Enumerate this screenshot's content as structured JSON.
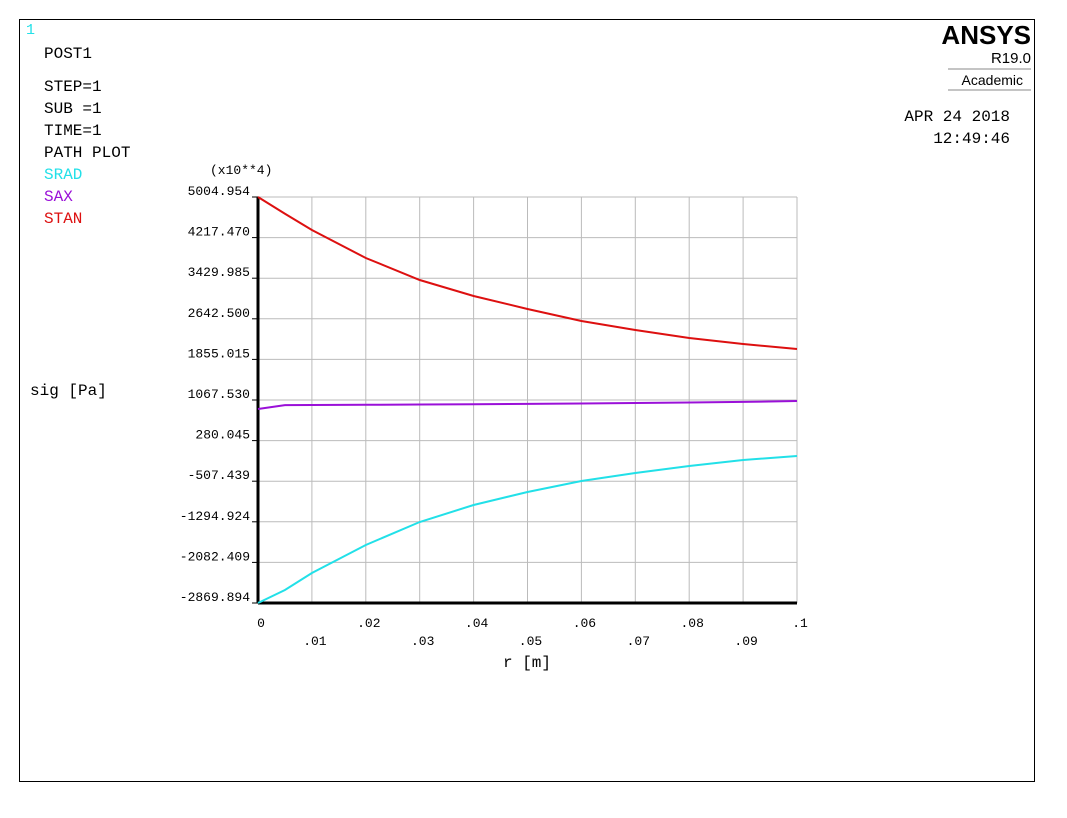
{
  "window_number": "1",
  "info": [
    "POST1",
    "STEP=1",
    "SUB =1",
    "TIME=1",
    "PATH PLOT"
  ],
  "logo": {
    "name": "ANSYS",
    "release": "R19.0",
    "license": "Academic"
  },
  "date": "APR 24 2018",
  "time": "12:49:46",
  "chart_data": {
    "type": "line",
    "y_multiplier": "(x10**4)",
    "x_label": "r [m]",
    "y_label": "sig [Pa]",
    "x": [
      0,
      0.005,
      0.01,
      0.02,
      0.03,
      0.04,
      0.05,
      0.06,
      0.07,
      0.08,
      0.09,
      0.1
    ],
    "series": [
      {
        "name": "SRAD",
        "color": "#22e0e8",
        "values": [
          -2869.894,
          -2618,
          -2288,
          -1745,
          -1299,
          -969,
          -717,
          -504,
          -349,
          -213,
          -97,
          -19
        ]
      },
      {
        "name": "SAX",
        "color": "#9a10d8",
        "values": [
          892,
          968,
          970,
          975,
          980,
          985,
          992,
          1000,
          1010,
          1020,
          1030,
          1048
        ]
      },
      {
        "name": "STAN",
        "color": "#dd1010",
        "values": [
          5004.954,
          4680,
          4365,
          3822,
          3395,
          3085,
          2833,
          2600,
          2425,
          2270,
          2154,
          2057
        ]
      }
    ],
    "xlim": [
      0,
      0.1
    ],
    "xticks": [
      0,
      {
        "value": 0.01,
        "label": ".01"
      },
      {
        "value": 0.02,
        "label": ".02"
      },
      {
        "value": 0.03,
        "label": ".03"
      },
      {
        "value": 0.04,
        "label": ".04"
      },
      {
        "value": 0.05,
        "label": ".05"
      },
      {
        "value": 0.06,
        "label": ".06"
      },
      {
        "value": 0.07,
        "label": ".07"
      },
      {
        "value": 0.08,
        "label": ".08"
      },
      {
        "value": 0.09,
        "label": ".09"
      },
      {
        "value": 0.1,
        "label": ".1"
      }
    ],
    "ylim": [
      -2869.894,
      5004.954
    ],
    "yticks": [
      -2869.894,
      -2082.409,
      -1294.924,
      -507.439,
      280.045,
      {
        "value": 1067.53,
        "label": "1067.530"
      },
      1855.015,
      {
        "value": 2642.5,
        "label": "2642.500"
      },
      3429.985,
      {
        "value": 4217.47,
        "label": "4217.470"
      },
      5004.954
    ],
    "grid": true
  }
}
